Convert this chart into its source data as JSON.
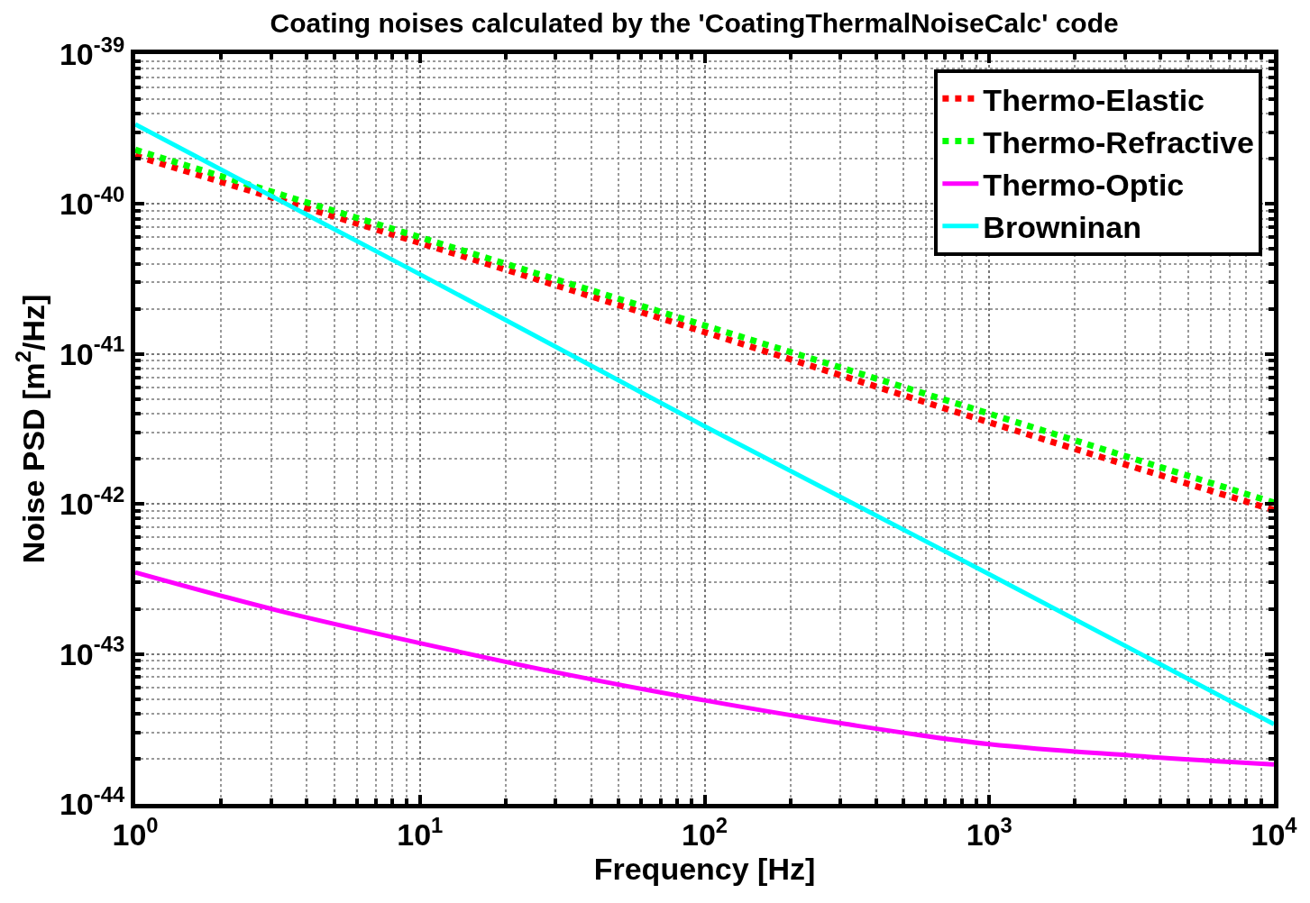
{
  "chart_data": {
    "type": "line",
    "title": "Coating noises calculated by the 'CoatingThermalNoiseCalc' code",
    "xlabel": "Frequency [Hz]",
    "ylabel": "Noise PSD [m$^{2}$/Hz]",
    "log": "xy",
    "xlim": [
      1,
      10000
    ],
    "ylim": [
      1e-44,
      1e-39
    ],
    "xticks": [
      {
        "value": 1,
        "label": "10$^{0}$"
      },
      {
        "value": 10,
        "label": "10$^{1}$"
      },
      {
        "value": 100,
        "label": "10$^{2}$"
      },
      {
        "value": 1000,
        "label": "10$^{3}$"
      },
      {
        "value": 10000,
        "label": "10$^{4}$"
      }
    ],
    "yticks": [
      {
        "value": 1e-44,
        "label": "10$^{-44}$"
      },
      {
        "value": 1e-43,
        "label": "10$^{-43}$"
      },
      {
        "value": 1e-42,
        "label": "10$^{-42}$"
      },
      {
        "value": 1e-41,
        "label": "10$^{-41}$"
      },
      {
        "value": 1e-40,
        "label": "10$^{-40}$"
      },
      {
        "value": 1e-39,
        "label": "10$^{-39}$"
      }
    ],
    "grid": true,
    "legend": "top right",
    "marker": "none",
    "series": [
      {
        "name": "Thermo-Elastic",
        "color": "#ff0000",
        "line_style": "dotted",
        "x": [
          1,
          10,
          100,
          1000,
          10000
        ],
        "values": [
          2.1e-40,
          5.5e-41,
          1.4e-41,
          3.5e-42,
          9.1e-43
        ]
      },
      {
        "name": "Thermo-Refractive",
        "color": "#00ff00",
        "line_style": "dotted",
        "x": [
          1,
          10,
          100,
          1000,
          10000
        ],
        "values": [
          2.3e-40,
          6e-41,
          1.55e-41,
          4e-42,
          1.02e-42
        ]
      },
      {
        "name": "Thermo-Optic",
        "color": "#ff00ff",
        "line_style": "solid",
        "x": [
          1,
          3.16,
          10,
          31.6,
          100,
          316,
          1000,
          3162,
          10000
        ],
        "values": [
          3.5e-43,
          1.95e-43,
          1.18e-43,
          7.4e-44,
          4.9e-44,
          3.4e-44,
          2.5e-44,
          2.1e-44,
          1.83e-44
        ]
      },
      {
        "name": "Browninan",
        "color": "#00ffff",
        "line_style": "solid",
        "x": [
          1,
          10,
          100,
          1000,
          10000
        ],
        "values": [
          3.4e-40,
          3.4e-41,
          3.3e-42,
          3.4e-43,
          3.4e-44
        ]
      }
    ]
  }
}
